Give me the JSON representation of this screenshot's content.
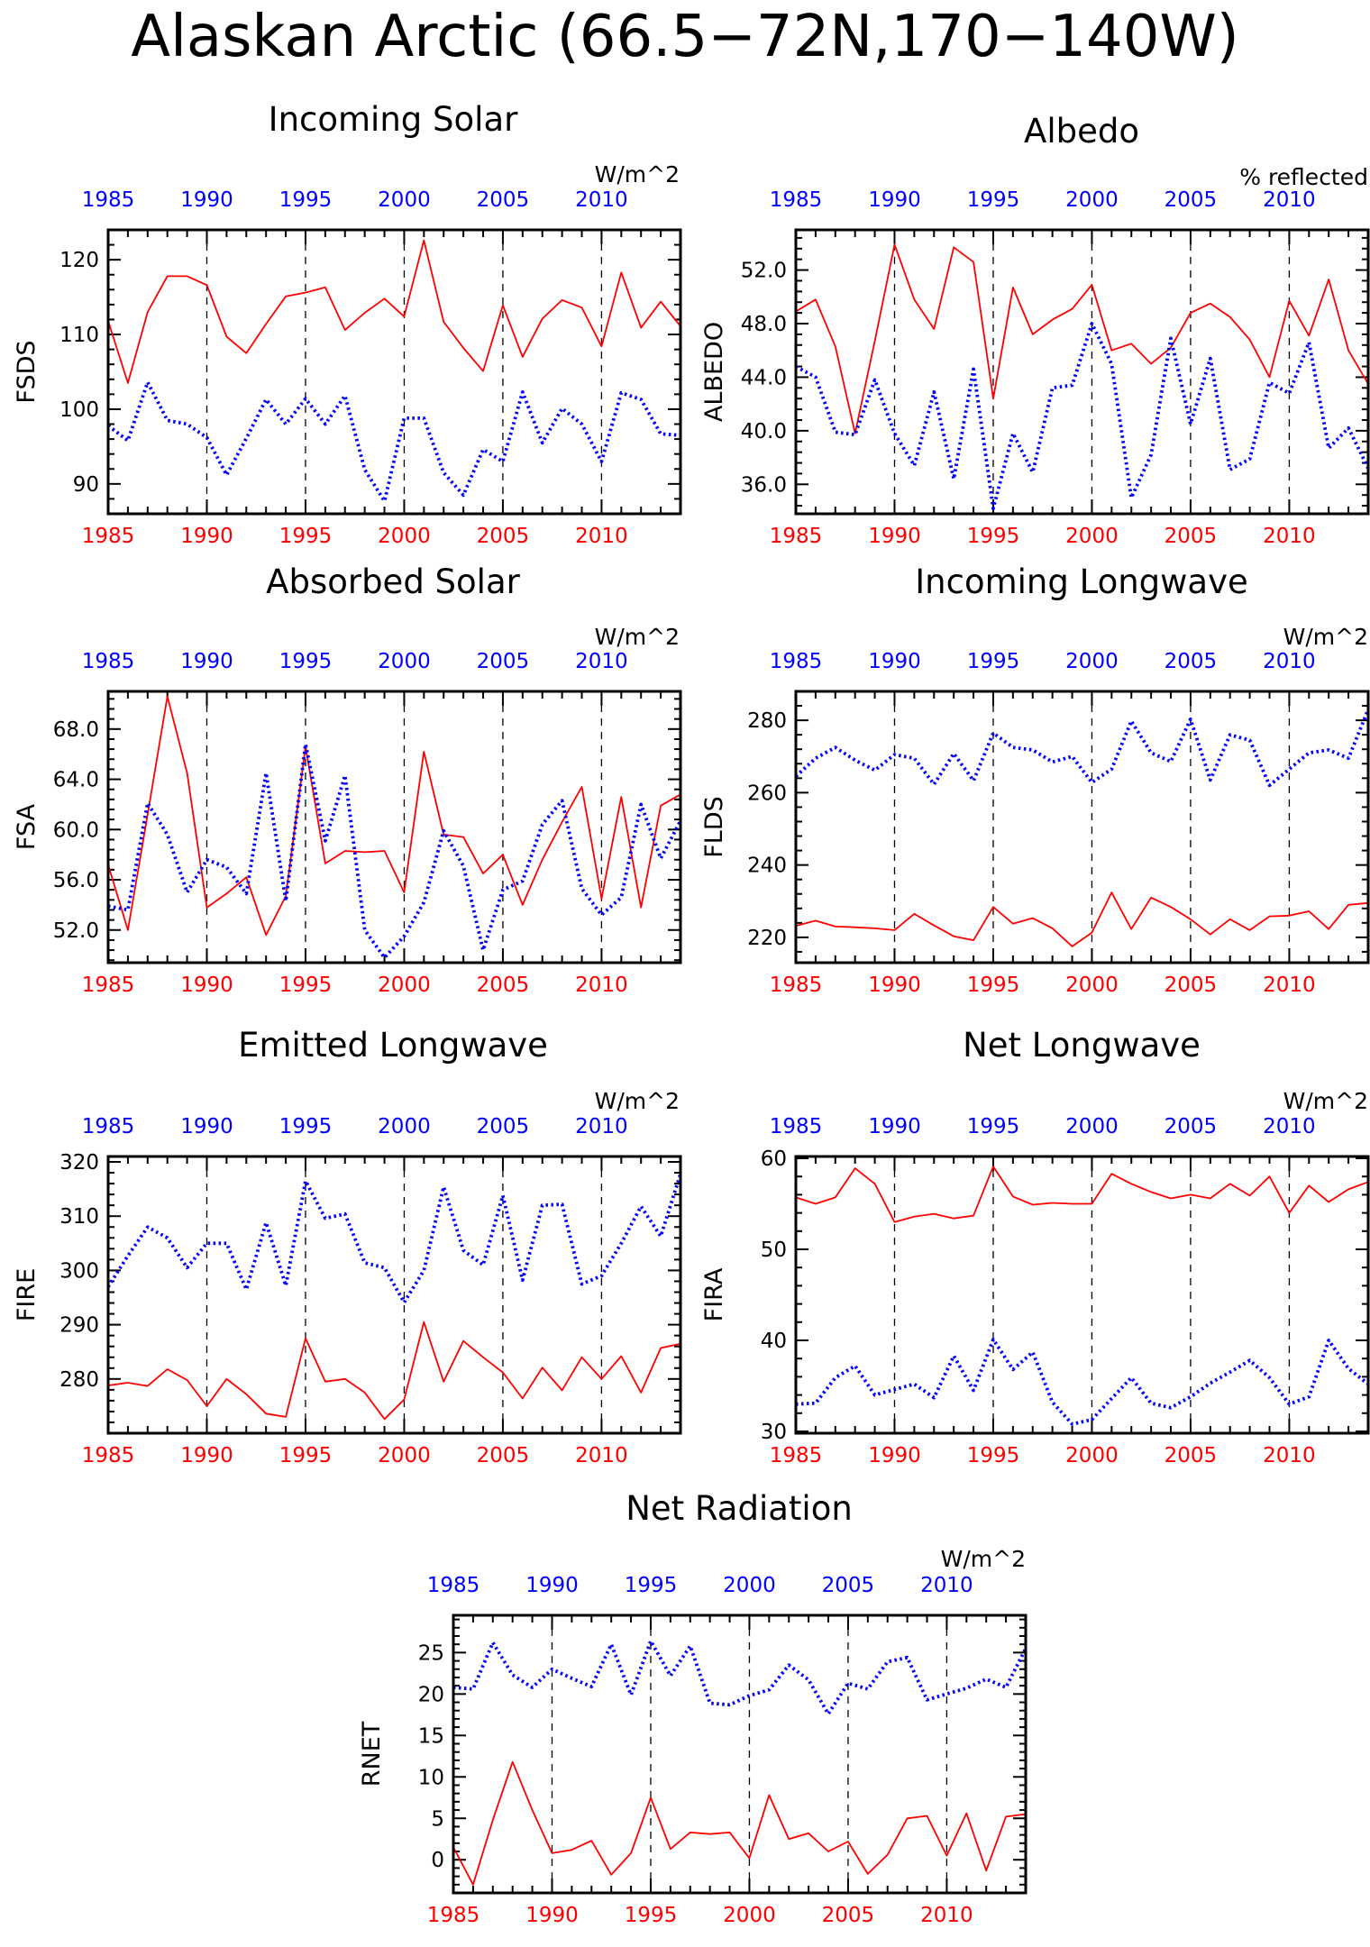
{
  "title": "Alaskan Arctic (66.5−72N,170−140W)",
  "colors": {
    "red": "#ff0000",
    "blue": "#0000ff",
    "axis": "#000000",
    "grid": "#000000"
  },
  "chart_data": [
    {
      "type": "line",
      "title": "Incoming Solar",
      "units": "W/m^2",
      "ylabel": "FSDS",
      "ylim": [
        86,
        124
      ],
      "yticks": [
        90,
        100,
        110,
        120
      ],
      "ytick_labels": [
        "90",
        "100",
        "110",
        "120"
      ],
      "xlim": [
        1985,
        2014
      ],
      "xticks": [
        1985,
        1990,
        1995,
        2000,
        2005,
        2010
      ],
      "x": [
        1985,
        1986,
        1987,
        1988,
        1989,
        1990,
        1991,
        1992,
        1993,
        1994,
        1995,
        1996,
        1997,
        1998,
        1999,
        2000,
        2001,
        2002,
        2003,
        2004,
        2005,
        2006,
        2007,
        2008,
        2009,
        2010,
        2011,
        2012,
        2013,
        2014
      ],
      "series": [
        {
          "color": "#ff0000",
          "style": "solid",
          "values": [
            111.8,
            103.5,
            113.0,
            117.8,
            117.8,
            116.6,
            109.7,
            107.5,
            111.4,
            115.1,
            115.6,
            116.3,
            110.6,
            112.9,
            114.8,
            112.4,
            122.6,
            111.7,
            108.2,
            105.1,
            113.9,
            107.0,
            112.1,
            114.6,
            113.6,
            108.4,
            118.3,
            110.9,
            114.4,
            111.1
          ]
        },
        {
          "color": "#0000ff",
          "style": "dotted",
          "values": [
            97.8,
            95.8,
            103.6,
            98.5,
            98.0,
            96.2,
            91.2,
            96.1,
            101.3,
            98.0,
            101.4,
            98.0,
            101.8,
            91.9,
            87.7,
            98.8,
            98.8,
            91.5,
            88.5,
            94.6,
            93.0,
            102.3,
            95.5,
            100.1,
            98.0,
            93.0,
            102.2,
            101.3,
            96.7,
            96.5
          ]
        }
      ]
    },
    {
      "type": "line",
      "title": "Albedo",
      "units": "% reflected",
      "ylabel": "ALBEDO",
      "ylim": [
        33.8,
        55.0
      ],
      "yticks": [
        36,
        40,
        44,
        48,
        52
      ],
      "ytick_labels": [
        "36.0",
        "40.0",
        "44.0",
        "48.0",
        "52.0"
      ],
      "xlim": [
        1985,
        2014
      ],
      "xticks": [
        1985,
        1990,
        1995,
        2000,
        2005,
        2010
      ],
      "x": [
        1985,
        1986,
        1987,
        1988,
        1989,
        1990,
        1991,
        1992,
        1993,
        1994,
        1995,
        1996,
        1997,
        1998,
        1999,
        2000,
        2001,
        2002,
        2003,
        2004,
        2005,
        2006,
        2007,
        2008,
        2009,
        2010,
        2011,
        2012,
        2013,
        2014
      ],
      "series": [
        {
          "color": "#ff0000",
          "style": "solid",
          "values": [
            48.9,
            49.8,
            46.3,
            39.8,
            46.7,
            53.9,
            49.8,
            47.6,
            53.7,
            52.6,
            42.4,
            50.7,
            47.2,
            48.3,
            49.1,
            50.9,
            46.0,
            46.5,
            45.0,
            46.2,
            48.8,
            49.5,
            48.5,
            46.8,
            44.0,
            49.7,
            47.1,
            51.3,
            46.0,
            43.5
          ]
        },
        {
          "color": "#0000ff",
          "style": "dotted",
          "values": [
            44.8,
            44.0,
            39.9,
            39.7,
            43.8,
            39.8,
            37.4,
            42.9,
            36.4,
            44.6,
            34.2,
            39.8,
            36.9,
            43.2,
            43.4,
            48.0,
            45.0,
            35.0,
            38.2,
            46.9,
            40.5,
            45.4,
            37.1,
            37.9,
            43.6,
            42.8,
            46.6,
            38.7,
            40.2,
            37.2
          ]
        }
      ]
    },
    {
      "type": "line",
      "title": "Absorbed Solar",
      "units": "W/m^2",
      "ylabel": "FSA",
      "ylim": [
        49.4,
        71.0
      ],
      "yticks": [
        52,
        56,
        60,
        64,
        68
      ],
      "ytick_labels": [
        "52.0",
        "56.0",
        "60.0",
        "64.0",
        "68.0"
      ],
      "xlim": [
        1985,
        2014
      ],
      "xticks": [
        1985,
        1990,
        1995,
        2000,
        2005,
        2010
      ],
      "x": [
        1985,
        1986,
        1987,
        1988,
        1989,
        1990,
        1991,
        1992,
        1993,
        1994,
        1995,
        1996,
        1997,
        1998,
        1999,
        2000,
        2001,
        2002,
        2003,
        2004,
        2005,
        2006,
        2007,
        2008,
        2009,
        2010,
        2011,
        2012,
        2013,
        2014
      ],
      "series": [
        {
          "color": "#ff0000",
          "style": "solid",
          "values": [
            57.2,
            52.0,
            61.2,
            70.6,
            64.5,
            53.8,
            54.9,
            56.2,
            51.6,
            54.7,
            66.6,
            57.3,
            58.3,
            58.2,
            58.3,
            55.0,
            66.2,
            59.6,
            59.4,
            56.5,
            58.0,
            54.0,
            57.6,
            60.6,
            63.4,
            54.5,
            62.6,
            53.8,
            61.9,
            62.8
          ]
        },
        {
          "color": "#0000ff",
          "style": "dotted",
          "values": [
            53.9,
            53.6,
            62.1,
            59.6,
            55.0,
            57.6,
            57.0,
            54.9,
            64.5,
            54.3,
            66.8,
            59.1,
            64.3,
            52.0,
            49.8,
            51.5,
            54.2,
            59.9,
            57.1,
            50.4,
            55.2,
            55.9,
            60.4,
            62.3,
            55.3,
            53.2,
            54.6,
            62.0,
            57.7,
            60.7
          ]
        }
      ]
    },
    {
      "type": "line",
      "title": "Incoming Longwave",
      "units": "W/m^2",
      "ylabel": "FLDS",
      "ylim": [
        213,
        288
      ],
      "yticks": [
        220,
        240,
        260,
        280
      ],
      "ytick_labels": [
        "220",
        "240",
        "260",
        "280"
      ],
      "xlim": [
        1985,
        2014
      ],
      "xticks": [
        1985,
        1990,
        1995,
        2000,
        2005,
        2010
      ],
      "x": [
        1985,
        1986,
        1987,
        1988,
        1989,
        1990,
        1991,
        1992,
        1993,
        1994,
        1995,
        1996,
        1997,
        1998,
        1999,
        2000,
        2001,
        2002,
        2003,
        2004,
        2005,
        2006,
        2007,
        2008,
        2009,
        2010,
        2011,
        2012,
        2013,
        2014
      ],
      "series": [
        {
          "color": "#ff0000",
          "style": "solid",
          "values": [
            223.2,
            224.6,
            223.0,
            222.8,
            222.5,
            222.0,
            226.5,
            223.3,
            220.3,
            219.2,
            228.4,
            223.8,
            225.3,
            222.5,
            217.5,
            221.3,
            232.4,
            222.3,
            231.0,
            228.4,
            225.0,
            220.8,
            225.0,
            222.0,
            225.8,
            226.0,
            227.2,
            222.3,
            229.0,
            229.5
          ]
        },
        {
          "color": "#0000ff",
          "style": "dotted",
          "values": [
            264.5,
            269.5,
            272.5,
            269.0,
            266.2,
            270.5,
            269.5,
            262.3,
            270.8,
            263.3,
            276.5,
            272.5,
            271.8,
            268.5,
            270.0,
            262.8,
            266.5,
            279.8,
            271.0,
            268.6,
            280.3,
            263.5,
            276.0,
            274.5,
            262.0,
            266.5,
            271.0,
            271.8,
            269.5,
            283.0
          ]
        }
      ]
    },
    {
      "type": "line",
      "title": "Emitted Longwave",
      "units": "W/m^2",
      "ylabel": "FIRE",
      "ylim": [
        270,
        321
      ],
      "yticks": [
        280,
        290,
        300,
        310,
        320
      ],
      "ytick_labels": [
        "280",
        "290",
        "300",
        "310",
        "320"
      ],
      "xlim": [
        1985,
        2014
      ],
      "xticks": [
        1985,
        1990,
        1995,
        2000,
        2005,
        2010
      ],
      "x": [
        1985,
        1986,
        1987,
        1988,
        1989,
        1990,
        1991,
        1992,
        1993,
        1994,
        1995,
        1996,
        1997,
        1998,
        1999,
        2000,
        2001,
        2002,
        2003,
        2004,
        2005,
        2006,
        2007,
        2008,
        2009,
        2010,
        2011,
        2012,
        2013,
        2014
      ],
      "series": [
        {
          "color": "#ff0000",
          "style": "solid",
          "values": [
            278.8,
            279.3,
            278.7,
            281.8,
            279.8,
            275.0,
            280.0,
            277.2,
            273.6,
            273.0,
            287.5,
            279.5,
            280.0,
            277.5,
            272.6,
            276.2,
            290.5,
            279.5,
            287.0,
            284.0,
            281.2,
            276.4,
            282.1,
            277.9,
            284.0,
            280.0,
            284.2,
            277.5,
            285.7,
            286.5
          ]
        },
        {
          "color": "#0000ff",
          "style": "dotted",
          "values": [
            297.0,
            302.7,
            308.0,
            306.0,
            300.5,
            305.0,
            305.0,
            296.5,
            308.8,
            297.2,
            316.5,
            309.6,
            310.4,
            301.4,
            300.5,
            294.1,
            300.0,
            315.4,
            303.7,
            301.0,
            313.8,
            298.2,
            312.0,
            312.2,
            297.5,
            299.0,
            305.0,
            311.8,
            306.3,
            317.8
          ]
        }
      ]
    },
    {
      "type": "line",
      "title": "Net Longwave",
      "units": "W/m^2",
      "ylabel": "FIRA",
      "ylim": [
        29.8,
        60.2
      ],
      "yticks": [
        30,
        40,
        50,
        60
      ],
      "ytick_labels": [
        "30",
        "40",
        "50",
        "60"
      ],
      "xlim": [
        1985,
        2014
      ],
      "xticks": [
        1985,
        1990,
        1995,
        2000,
        2005,
        2010
      ],
      "x": [
        1985,
        1986,
        1987,
        1988,
        1989,
        1990,
        1991,
        1992,
        1993,
        1994,
        1995,
        1996,
        1997,
        1998,
        1999,
        2000,
        2001,
        2002,
        2003,
        2004,
        2005,
        2006,
        2007,
        2008,
        2009,
        2010,
        2011,
        2012,
        2013,
        2014
      ],
      "series": [
        {
          "color": "#ff0000",
          "style": "solid",
          "values": [
            55.7,
            55.0,
            55.7,
            58.9,
            57.2,
            53.0,
            53.6,
            53.9,
            53.4,
            53.7,
            59.1,
            55.8,
            54.9,
            55.1,
            55.0,
            55.0,
            58.3,
            57.2,
            56.3,
            55.6,
            56.0,
            55.6,
            57.2,
            55.9,
            58.0,
            54.0,
            57.0,
            55.2,
            56.6,
            57.4
          ]
        },
        {
          "color": "#0000ff",
          "style": "dotted",
          "values": [
            33.0,
            33.1,
            35.9,
            37.2,
            34.0,
            34.6,
            35.2,
            33.7,
            38.3,
            34.5,
            40.1,
            36.8,
            38.7,
            33.2,
            30.8,
            31.3,
            33.6,
            35.9,
            33.1,
            32.6,
            33.8,
            35.3,
            36.5,
            37.8,
            35.9,
            33.0,
            33.8,
            40.0,
            36.9,
            35.2
          ]
        }
      ]
    },
    {
      "type": "line",
      "title": "Net Radiation",
      "units": "W/m^2",
      "ylabel": "RNET",
      "ylim": [
        -4.0,
        29.5
      ],
      "yticks": [
        0,
        5,
        10,
        15,
        20,
        25
      ],
      "ytick_labels": [
        "0",
        "5",
        "10",
        "15",
        "20",
        "25"
      ],
      "xlim": [
        1985,
        2014
      ],
      "xticks": [
        1985,
        1990,
        1995,
        2000,
        2005,
        2010
      ],
      "x": [
        1985,
        1986,
        1987,
        1988,
        1989,
        1990,
        1991,
        1992,
        1993,
        1994,
        1995,
        1996,
        1997,
        1998,
        1999,
        2000,
        2001,
        2002,
        2003,
        2004,
        2005,
        2006,
        2007,
        2008,
        2009,
        2010,
        2011,
        2012,
        2013,
        2014
      ],
      "series": [
        {
          "color": "#ff0000",
          "style": "solid",
          "values": [
            1.5,
            -3.0,
            4.8,
            11.8,
            6.0,
            0.8,
            1.2,
            2.3,
            -1.8,
            0.8,
            7.5,
            1.3,
            3.3,
            3.1,
            3.3,
            0.2,
            7.8,
            2.5,
            3.2,
            1.0,
            2.2,
            -1.7,
            0.6,
            5.0,
            5.3,
            0.5,
            5.6,
            -1.3,
            5.2,
            5.5
          ]
        },
        {
          "color": "#0000ff",
          "style": "dotted",
          "values": [
            20.8,
            20.6,
            26.2,
            22.3,
            20.8,
            23.0,
            21.9,
            20.9,
            26.0,
            19.9,
            26.4,
            22.2,
            25.8,
            18.9,
            18.7,
            19.8,
            20.5,
            23.5,
            21.7,
            17.6,
            21.3,
            20.6,
            23.9,
            24.4,
            19.3,
            20.0,
            20.7,
            21.8,
            20.8,
            25.5
          ]
        }
      ]
    }
  ]
}
